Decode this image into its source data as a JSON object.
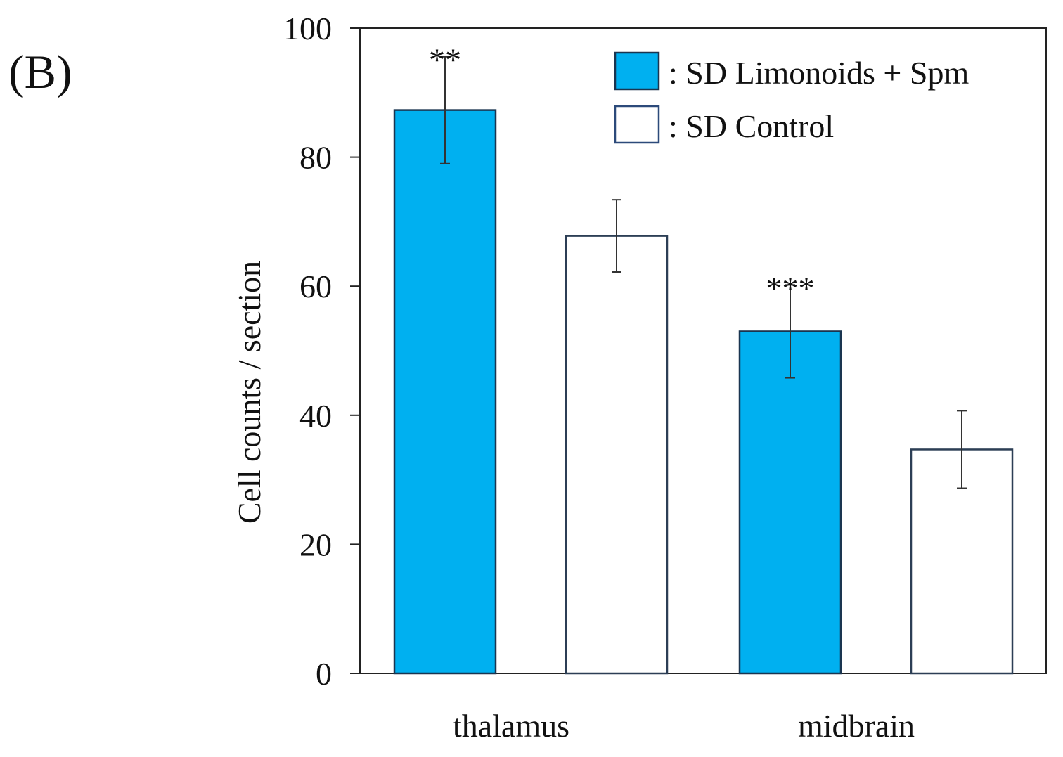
{
  "panel_label": "(B)",
  "chart_data": {
    "type": "bar",
    "title": "",
    "xlabel": "",
    "ylabel": "Cell counts / section",
    "ylim": [
      0,
      100
    ],
    "yticks": [
      0,
      20,
      40,
      60,
      80,
      100
    ],
    "categories": [
      "thalamus",
      "midbrain"
    ],
    "series": [
      {
        "name": ": SD Limonoids + Spm",
        "color": "#00b0f0",
        "values": [
          87.3,
          53.0
        ],
        "errors": [
          8.3,
          7.2
        ],
        "significance": [
          "**",
          "***"
        ]
      },
      {
        "name": ": SD Control",
        "color": "#ffffff",
        "values": [
          67.8,
          34.7
        ],
        "errors": [
          5.6,
          6.0
        ],
        "significance": [
          "",
          ""
        ]
      }
    ],
    "legend": "top-right",
    "grid": false
  }
}
